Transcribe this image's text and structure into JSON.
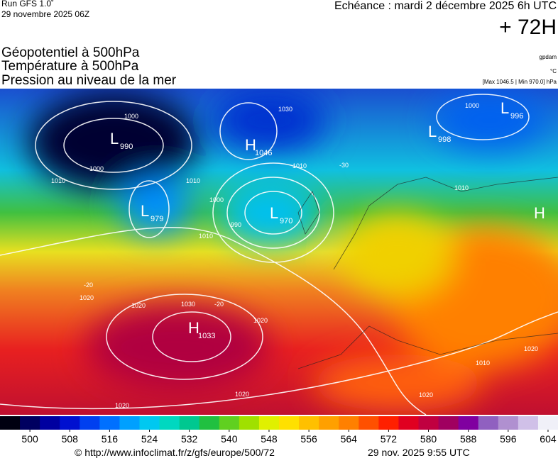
{
  "header": {
    "run": "Run GFS 1.0˚",
    "date": "29 novembre 2025 06Z",
    "echeance": "Echéance : mardi 2 décembre 2025 6h UTC",
    "lead": "+ 72H"
  },
  "layers": [
    "Géopotentiel à 500hPa",
    "Température à 500hPa",
    "Pression au niveau de la mer"
  ],
  "units": [
    "gpdam",
    "°C",
    "[Max 1046.5 | Min 970.0] hPa"
  ],
  "centers": [
    {
      "letter": "L",
      "value": "990"
    },
    {
      "letter": "H",
      "value": "1046"
    },
    {
      "letter": "L",
      "value": "979"
    },
    {
      "letter": "L",
      "value": "970"
    },
    {
      "letter": "H",
      "value": "1033"
    },
    {
      "letter": "L",
      "value": "996"
    },
    {
      "letter": "L",
      "value": "998"
    },
    {
      "letter": "H",
      "value": ""
    }
  ],
  "isobar_labels": [
    "1000",
    "1000",
    "1010",
    "1010",
    "1030",
    "1010",
    "-30",
    "1000",
    "990",
    "1010",
    "1010",
    "1020",
    "1020",
    "1030",
    "-20",
    "-20",
    "1020",
    "1020",
    "1020",
    "1020",
    "1020",
    "1000",
    "1010"
  ],
  "colorbar": {
    "range": [
      494,
      606
    ],
    "ticks": [
      500,
      508,
      516,
      524,
      532,
      540,
      548,
      556,
      564,
      572,
      580,
      588,
      596,
      604
    ],
    "colors": [
      "#000010",
      "#000060",
      "#0000a0",
      "#0010d0",
      "#0040f0",
      "#0070ff",
      "#00a0ff",
      "#00c8f0",
      "#00d8c0",
      "#00c890",
      "#20c040",
      "#60d020",
      "#a0e000",
      "#e0f000",
      "#ffe000",
      "#ffc000",
      "#ffa000",
      "#ff8000",
      "#ff5000",
      "#ff2000",
      "#e00020",
      "#c00040",
      "#a00060",
      "#8000a0",
      "#9060c0",
      "#b090d0",
      "#d0c0e8",
      "#f0f0f8"
    ]
  },
  "footer": {
    "url": "© http://www.infoclimat.fr/z/gfs/europe/500/72",
    "stamp": "29 nov. 2025  9:55 UTC"
  }
}
